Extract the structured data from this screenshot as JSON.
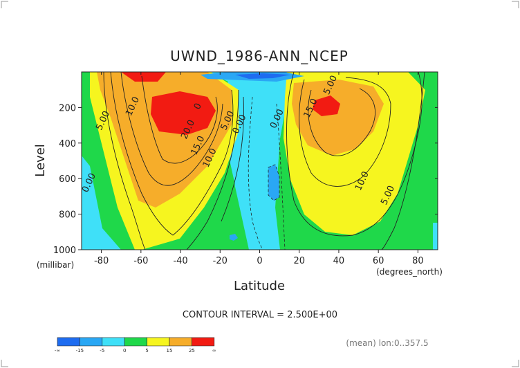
{
  "chart_data": {
    "type": "heatmap",
    "title": "UWND_1986-ANN_NCEP",
    "xlabel": "Latitude",
    "ylabel": "Level",
    "x_unit": "(degrees_north)",
    "y_unit": "(millibar)",
    "xlim": [
      -90,
      90
    ],
    "ylim": [
      1000,
      0
    ],
    "y_reversed": true,
    "x_ticks": [
      -80,
      -60,
      -40,
      -20,
      0,
      20,
      40,
      60,
      80
    ],
    "y_ticks": [
      200,
      400,
      600,
      800,
      1000
    ],
    "contour_interval_text": "CONTOUR INTERVAL = 2.500E+00",
    "averaging_text": "(mean) lon:0..357.5",
    "contour_labels": [
      {
        "text": "10.0",
        "x": -63,
        "y": 200
      },
      {
        "text": "5.00",
        "x": -78,
        "y": 280
      },
      {
        "text": "0.00",
        "x": -85,
        "y": 630
      },
      {
        "text": "20.0",
        "x": -35,
        "y": 330
      },
      {
        "text": "15.0",
        "x": -30,
        "y": 420
      },
      {
        "text": "10.0",
        "x": -24,
        "y": 490
      },
      {
        "text": "5.00",
        "x": -15,
        "y": 280
      },
      {
        "text": "0.00",
        "x": -9,
        "y": 300
      },
      {
        "text": "0.00",
        "x": 10,
        "y": 270
      },
      {
        "text": "15.0",
        "x": 27,
        "y": 210
      },
      {
        "text": "5.00",
        "x": 37,
        "y": 80
      },
      {
        "text": "10.0",
        "x": 53,
        "y": 620
      },
      {
        "text": "5.00",
        "x": 66,
        "y": 700
      },
      {
        "text": "0",
        "x": -30,
        "y": 200
      }
    ],
    "colorbar": {
      "boundaries": [
        "-∞",
        "-15",
        "-5",
        "0",
        "5",
        "15",
        "25",
        "∞"
      ],
      "colors": [
        "#1e6cf0",
        "#2aa7f4",
        "#3fe0f8",
        "#1fd84a",
        "#f6f51f",
        "#f6ad2a",
        "#f21b12"
      ]
    },
    "max_westerly_approx": {
      "south": 27.5,
      "north": 27.5
    }
  }
}
